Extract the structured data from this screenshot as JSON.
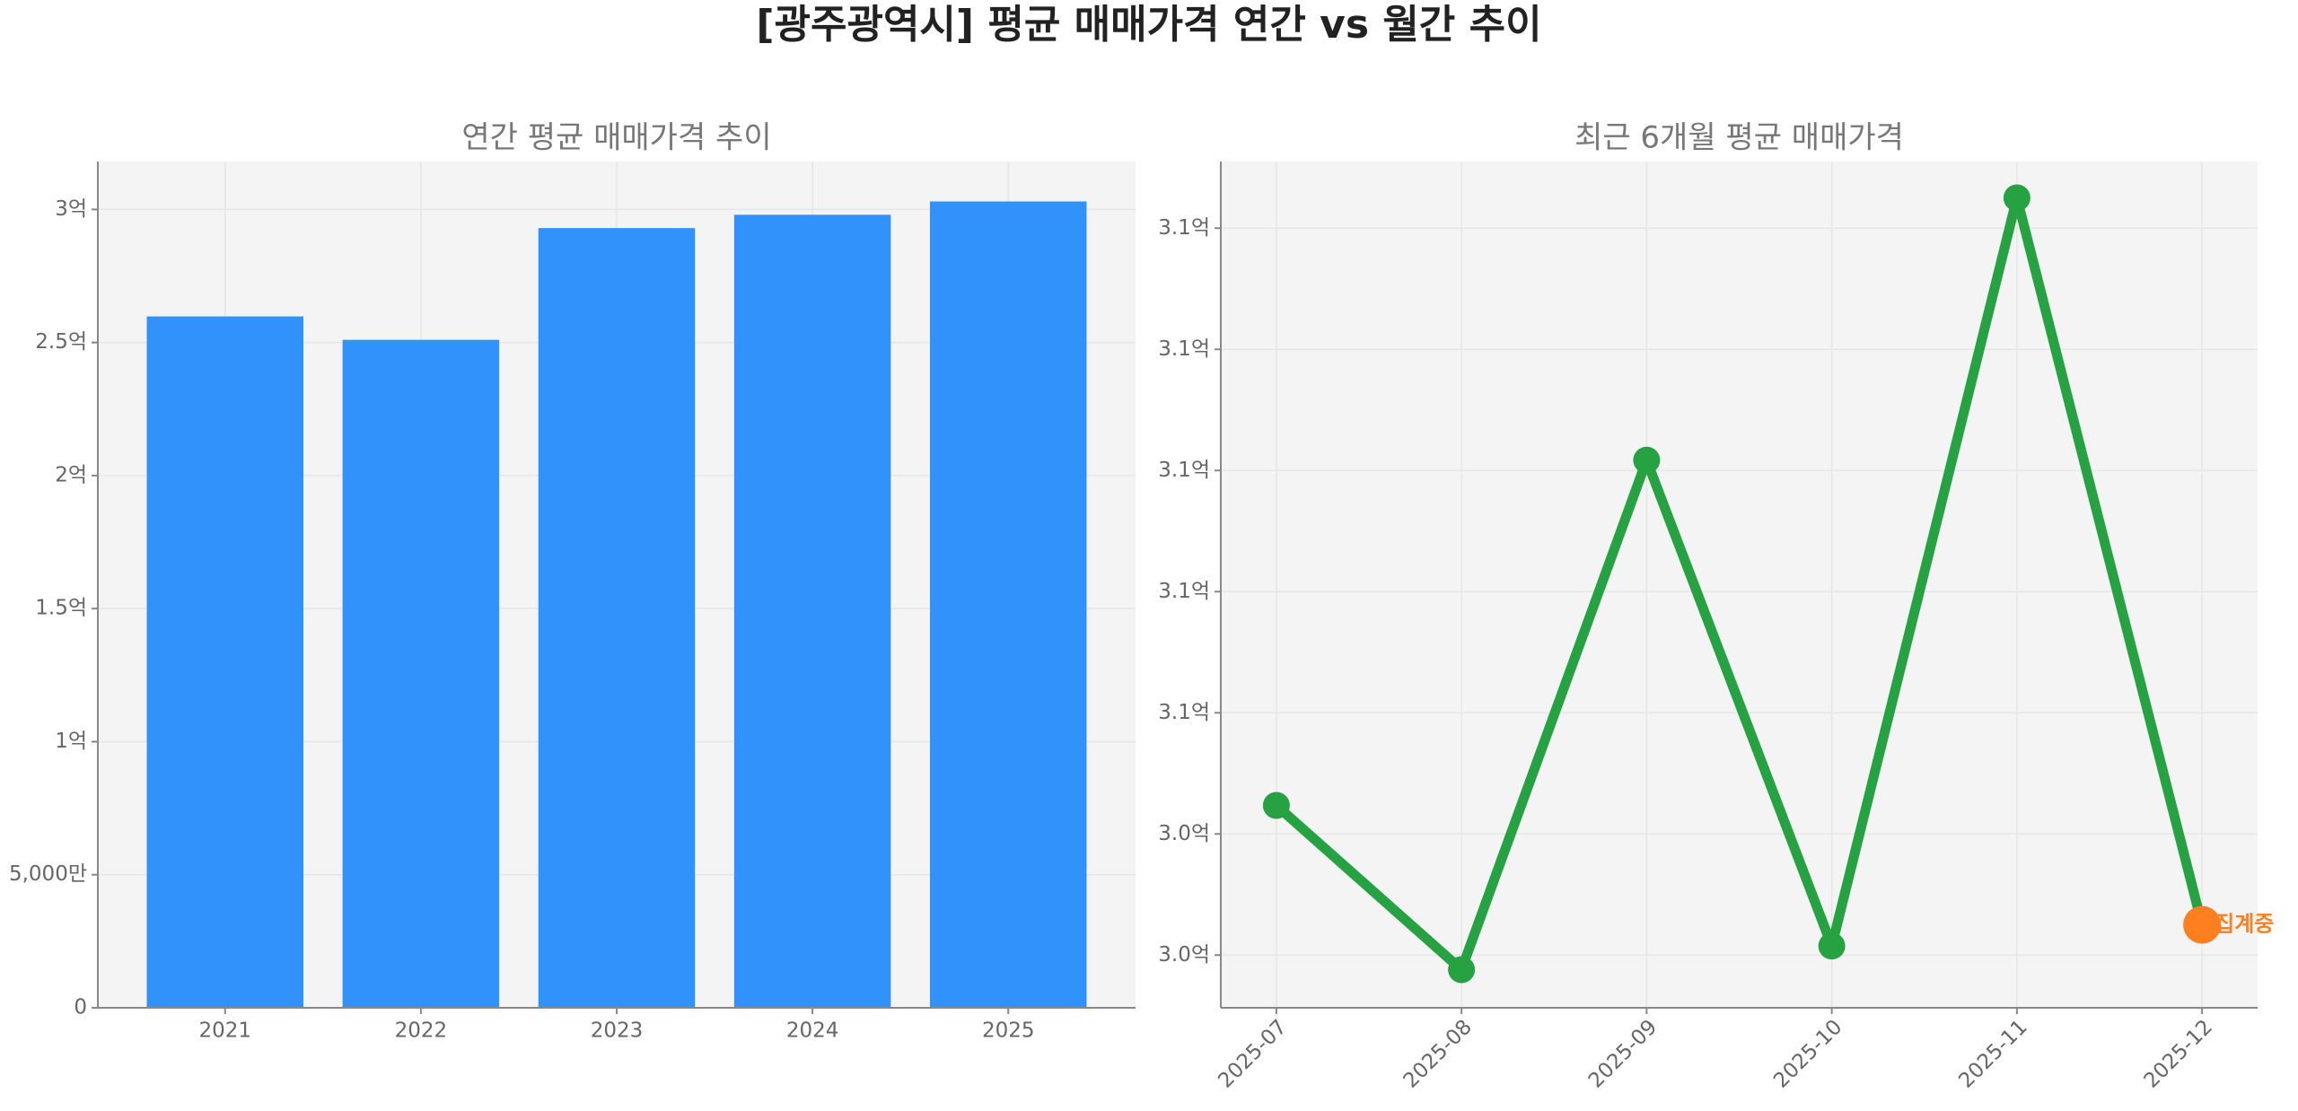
{
  "title": "[광주광역시] 평균 매매가격 연간 vs 월간 추이",
  "chart_data": [
    {
      "type": "bar",
      "title": "연간 평균 매매가격 추이",
      "categories": [
        "2021",
        "2022",
        "2023",
        "2024",
        "2025"
      ],
      "values": [
        259800000,
        251000000,
        293000000,
        298000000,
        303000000
      ],
      "color": "#3192fb",
      "ylim": [
        0,
        318000000
      ],
      "yticks": [
        0,
        {
          "value": 50000000,
          "label": "5,000만"
        },
        {
          "value": 100000000,
          "label": "1억"
        },
        {
          "value": 150000000,
          "label": "1.5억"
        },
        {
          "value": 200000000,
          "label": "2억"
        },
        {
          "value": 250000000,
          "label": "2.5억"
        },
        {
          "value": 300000000,
          "label": "3억"
        }
      ],
      "grid": true
    },
    {
      "type": "line",
      "title": "최근 6개월 평균 매매가격",
      "categories": [
        "2025-07",
        "2025-08",
        "2025-09",
        "2025-10",
        "2025-11",
        "2025-12"
      ],
      "series": [
        {
          "color": "#27a243",
          "values": [
            304470000,
            301760000,
            310170000,
            302150000,
            314500000,
            302500000
          ]
        }
      ],
      "highlight": {
        "index": 5,
        "color": "#fd7f1f",
        "label": "집계중"
      },
      "ylim": [
        301130000,
        315100000
      ],
      "yticks": [
        {
          "value": 302000000,
          "label": "3.0억"
        },
        {
          "value": 304000000,
          "label": "3.0억"
        },
        {
          "value": 306000000,
          "label": "3.1억"
        },
        {
          "value": 308000000,
          "label": "3.1억"
        },
        {
          "value": 310000000,
          "label": "3.1억"
        },
        {
          "value": 312000000,
          "label": "3.1억"
        },
        {
          "value": 314000000,
          "label": "3.1억"
        }
      ],
      "grid": true
    }
  ]
}
